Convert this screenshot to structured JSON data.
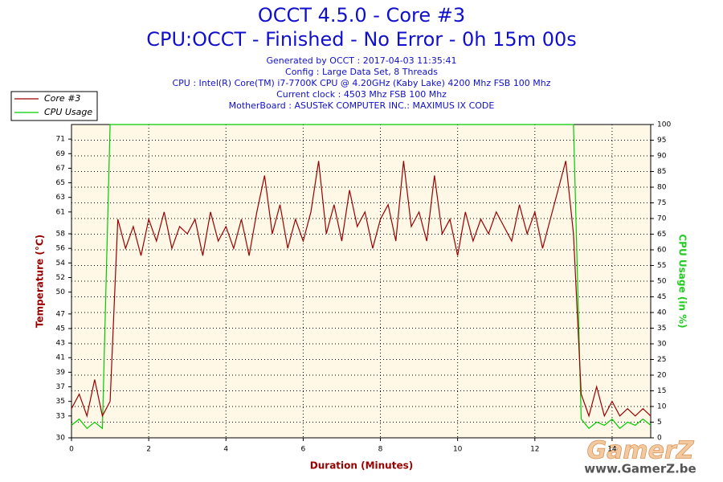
{
  "chart_data": {
    "type": "line",
    "title": "OCCT 4.5.0 - Core #3",
    "subtitle": "CPU:OCCT - Finished - No Error - 0h 15m 00s",
    "info": [
      "Generated by OCCT : 2017-04-03 11:35:41",
      "Config : Large Data Set, 8 Threads",
      "CPU : Intel(R) Core(TM) i7-7700K CPU @ 4.20GHz (Kaby Lake) 4200 Mhz FSB 100 Mhz",
      "Current clock : 4503 Mhz FSB 100 Mhz",
      "MotherBoard : ASUSTeK COMPUTER INC.: MAXIMUS IX CODE"
    ],
    "x_label": "Duration (Minutes)",
    "y_label": "Temperature (°C)",
    "y2_label": "CPU Usage (in %)",
    "watermark": [
      "GamerZ",
      "www.GamerZ.be"
    ],
    "grid": true,
    "legend": "top-left",
    "xlim": [
      0,
      15
    ],
    "xticks": [
      0,
      2,
      4,
      6,
      8,
      10,
      12,
      14
    ],
    "ylim": [
      30,
      73
    ],
    "yticks": [
      30,
      33,
      35,
      37,
      39,
      41,
      43,
      45,
      47,
      50,
      52,
      54,
      56,
      58,
      61,
      63,
      65,
      67,
      69,
      71
    ],
    "y2lim": [
      0,
      100
    ],
    "y2ticks": [
      0,
      5,
      10,
      15,
      20,
      25,
      30,
      35,
      40,
      45,
      50,
      55,
      60,
      65,
      70,
      75,
      80,
      85,
      90,
      95,
      100
    ],
    "x": [
      0,
      0.2,
      0.4,
      0.6,
      0.8,
      1.0,
      1.2,
      1.4,
      1.6,
      1.8,
      2.0,
      2.2,
      2.4,
      2.6,
      2.8,
      3.0,
      3.2,
      3.4,
      3.6,
      3.8,
      4.0,
      4.2,
      4.4,
      4.6,
      4.8,
      5.0,
      5.2,
      5.4,
      5.6,
      5.8,
      6.0,
      6.2,
      6.4,
      6.6,
      6.8,
      7.0,
      7.2,
      7.4,
      7.6,
      7.8,
      8.0,
      8.2,
      8.4,
      8.6,
      8.8,
      9.0,
      9.2,
      9.4,
      9.6,
      9.8,
      10.0,
      10.2,
      10.4,
      10.6,
      10.8,
      11.0,
      11.2,
      11.4,
      11.6,
      11.8,
      12.0,
      12.2,
      12.4,
      12.6,
      12.8,
      13.0,
      13.2,
      13.4,
      13.6,
      13.8,
      14.0,
      14.2,
      14.4,
      14.6,
      14.8,
      15.0
    ],
    "series": [
      {
        "name": "Core #3",
        "color": "#990000",
        "values": [
          34,
          36,
          33,
          38,
          33,
          35,
          60,
          56,
          59,
          55,
          60,
          57,
          61,
          56,
          59,
          58,
          60,
          55,
          61,
          57,
          59,
          56,
          60,
          55,
          61,
          66,
          58,
          62,
          56,
          60,
          57,
          61,
          68,
          58,
          62,
          57,
          64,
          59,
          61,
          56,
          60,
          62,
          57,
          68,
          59,
          61,
          57,
          66,
          58,
          60,
          55,
          61,
          57,
          60,
          58,
          61,
          59,
          57,
          62,
          58,
          61,
          56,
          60,
          64,
          68,
          58,
          36,
          33,
          37,
          33,
          35,
          33,
          34,
          33,
          34,
          33
        ]
      },
      {
        "name": "CPU Usage",
        "color": "#00cc00",
        "axis": "y2",
        "values": [
          4,
          6,
          3,
          5,
          3,
          100,
          100,
          100,
          100,
          100,
          100,
          100,
          100,
          100,
          100,
          100,
          100,
          100,
          100,
          100,
          100,
          100,
          100,
          100,
          100,
          100,
          100,
          100,
          100,
          100,
          100,
          100,
          100,
          100,
          100,
          100,
          100,
          100,
          100,
          100,
          100,
          100,
          100,
          100,
          100,
          100,
          100,
          100,
          100,
          100,
          100,
          100,
          100,
          100,
          100,
          100,
          100,
          100,
          100,
          100,
          100,
          100,
          100,
          100,
          100,
          100,
          6,
          3,
          5,
          4,
          6,
          3,
          5,
          4,
          6,
          4
        ]
      }
    ]
  }
}
